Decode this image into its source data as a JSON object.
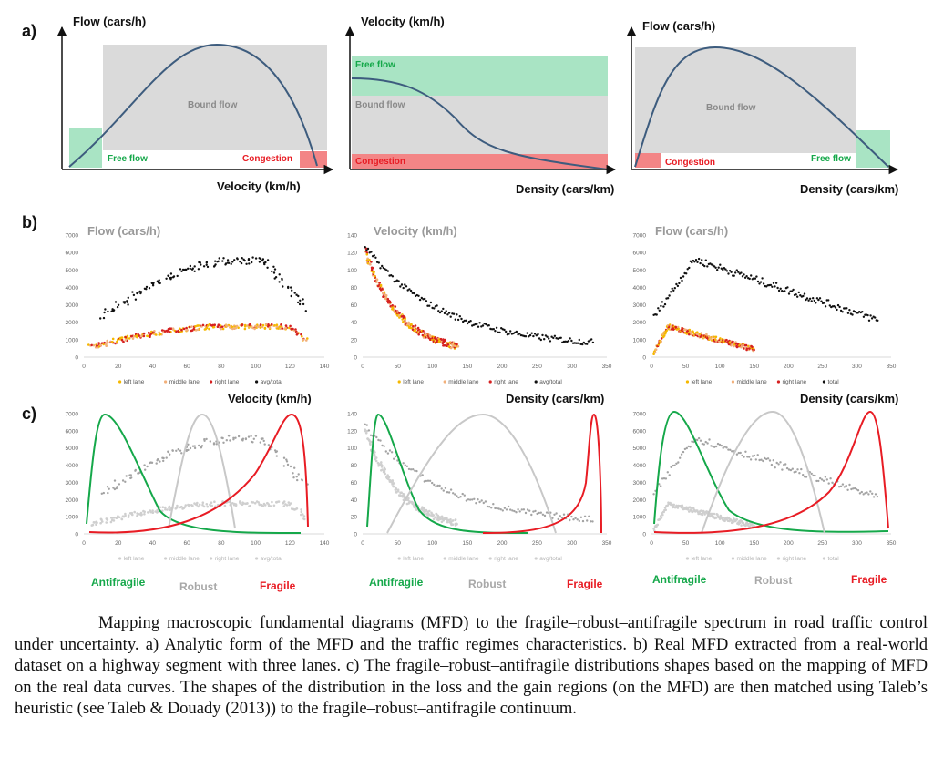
{
  "figure": {
    "panel_labels": {
      "a": "a)",
      "b": "b)",
      "c": "c)"
    },
    "row_a": [
      {
        "y_label": "Flow (cars/h)",
        "x_label": "Velocity (km/h)",
        "regions": {
          "bound": "Bound flow",
          "free": "Free flow",
          "congestion": "Congestion"
        }
      },
      {
        "y_label": "Velocity (km/h)",
        "x_label": "Density (cars/km)",
        "regions": {
          "bound": "Bound flow",
          "free": "Free flow",
          "congestion": "Congestion"
        }
      },
      {
        "y_label": "Flow (cars/h)",
        "x_label": "Density (cars/km)",
        "regions": {
          "bound": "Bound flow",
          "free": "Free flow",
          "congestion": "Congestion"
        }
      }
    ],
    "row_b": [
      {
        "title": "Flow (cars/h)",
        "x_label": "Velocity (km/h)",
        "y_ticks": [
          "0",
          "1000",
          "2000",
          "3000",
          "4000",
          "5000",
          "6000",
          "7000"
        ],
        "x_ticks": [
          "0",
          "20",
          "40",
          "60",
          "80",
          "100",
          "120",
          "140"
        ],
        "legend": [
          "left lane",
          "middle lane",
          "right lane",
          "avg/total"
        ]
      },
      {
        "title": "Velocity (km/h)",
        "x_label": "Density (cars/km)",
        "y_ticks": [
          "0",
          "20",
          "40",
          "60",
          "80",
          "100",
          "120",
          "140"
        ],
        "x_ticks": [
          "0",
          "50",
          "100",
          "150",
          "200",
          "250",
          "300",
          "350"
        ],
        "legend": [
          "left lane",
          "middle lane",
          "right lane",
          "avg/total"
        ]
      },
      {
        "title": "Flow (cars/h)",
        "x_label": "Density (cars/km)",
        "y_ticks": [
          "0",
          "1000",
          "2000",
          "3000",
          "4000",
          "5000",
          "6000",
          "7000"
        ],
        "x_ticks": [
          "0",
          "50",
          "100",
          "150",
          "200",
          "250",
          "300",
          "350"
        ],
        "legend": [
          "left lane",
          "middle lane",
          "right lane",
          "total"
        ]
      }
    ],
    "row_c": [
      {
        "y_ticks": [
          "0",
          "1000",
          "2000",
          "3000",
          "4000",
          "5000",
          "6000",
          "7000"
        ],
        "x_ticks": [
          "0",
          "20",
          "40",
          "60",
          "80",
          "100",
          "120",
          "140"
        ],
        "legend": [
          "left lane",
          "middle lane",
          "right lane",
          "avg/total"
        ],
        "labels": {
          "antifragile": "Antifragile",
          "robust": "Robust",
          "fragile": "Fragile"
        }
      },
      {
        "y_ticks": [
          "0",
          "20",
          "40",
          "60",
          "80",
          "100",
          "120",
          "140"
        ],
        "x_ticks": [
          "0",
          "50",
          "100",
          "150",
          "200",
          "250",
          "300",
          "350"
        ],
        "legend": [
          "left lane",
          "middle lane",
          "right lane",
          "avg/total"
        ],
        "labels": {
          "antifragile": "Antifragile",
          "robust": "Robust",
          "fragile": "Fragile"
        }
      },
      {
        "y_ticks": [
          "0",
          "1000",
          "2000",
          "3000",
          "4000",
          "5000",
          "6000",
          "7000"
        ],
        "x_ticks": [
          "0",
          "50",
          "100",
          "150",
          "200",
          "250",
          "300",
          "350"
        ],
        "legend": [
          "left lane",
          "middle lane",
          "right lane",
          "total"
        ],
        "labels": {
          "antifragile": "Antifragile",
          "robust": "Robust",
          "fragile": "Fragile"
        }
      }
    ],
    "colors": {
      "free": "#a9e4c4",
      "bound": "#dadada",
      "congestion": "#f38586",
      "curve": "#3d5c7e",
      "antifragile": "#15a84a",
      "robust": "#c8c8c8",
      "fragile": "#e81c24",
      "lane_left": "#f5b800",
      "lane_middle": "#f2b07a",
      "lane_right": "#d62020",
      "total": "#111111"
    }
  },
  "caption": "Mapping macroscopic fundamental diagrams (MFD) to the fragile–robust–antifragile spectrum in road traffic control under uncertainty. a) Analytic form of the MFD and the traffic regimes characteristics. b) Real MFD extracted from a real-world dataset on a highway segment with three lanes. c) The fragile–robust–antifragile distributions shapes based on the mapping of MFD on the real data curves. The shapes of the distribution in the loss and the gain regions (on the MFD) are then matched using Taleb’s heuristic (see Taleb & Douady (2013)) to the fragile–robust–antifragile continuum."
}
